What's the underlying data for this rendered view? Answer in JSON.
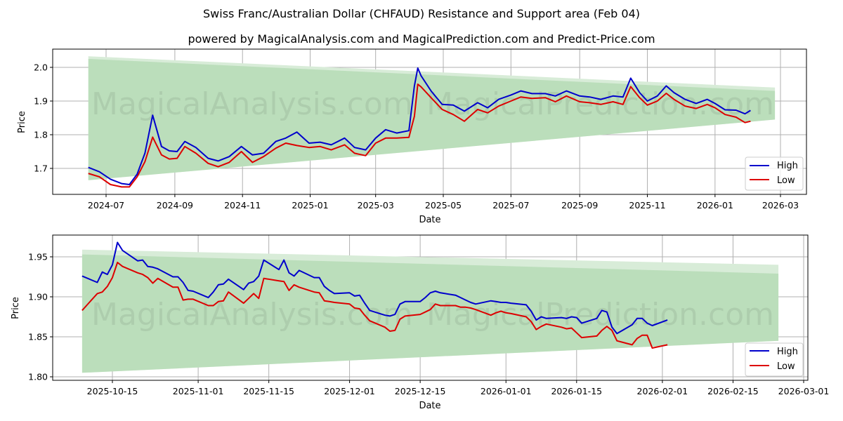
{
  "header": {
    "title": "Swiss Franc/Australian Dollar (CHFAUD) Resistance and Support area (Feb 04)",
    "subtitle": "powered by MagicalAnalysis.com and MagicalPrediction.com and Predict-Price.com"
  },
  "watermarks": [
    "MagicalAnalysis.com",
    "MagicalPrediction.com"
  ],
  "colors": {
    "high": "#0000cc",
    "low": "#dd0000",
    "band": "#a8d5a8",
    "band_light": "#d8ecd8",
    "grid": "#b0b0b0"
  },
  "chart_data": [
    {
      "type": "line",
      "title": "Full history",
      "xlabel": "Date",
      "ylabel": "Price",
      "x_ticks": [
        "2024-07",
        "2024-09",
        "2024-11",
        "2025-01",
        "2025-03",
        "2025-05",
        "2025-07",
        "2025-09",
        "2025-11",
        "2026-01",
        "2026-03"
      ],
      "y_ticks": [
        "1.7",
        "1.8",
        "1.9",
        "2.0"
      ],
      "ylim": [
        1.625,
        2.055
      ],
      "grid": true,
      "legend": {
        "position": "lower right",
        "entries": [
          "High",
          "Low"
        ]
      },
      "band": {
        "description": "Resistance/support area",
        "x_start": "2024-06-15",
        "x_end": "2026-02-24",
        "upper_start": 2.033,
        "upper_end": 1.94,
        "upper_inner_start": 2.025,
        "upper_inner_end": 1.93,
        "lower_start": 1.665,
        "lower_end": 1.845
      },
      "x": [
        "2024-06-15",
        "2024-06-25",
        "2024-07-05",
        "2024-07-15",
        "2024-07-22",
        "2024-07-29",
        "2024-08-05",
        "2024-08-12",
        "2024-08-20",
        "2024-08-27",
        "2024-09-03",
        "2024-09-10",
        "2024-09-20",
        "2024-10-01",
        "2024-10-10",
        "2024-10-20",
        "2024-10-31",
        "2024-11-10",
        "2024-11-20",
        "2024-12-01",
        "2024-12-10",
        "2024-12-20",
        "2024-12-31",
        "2025-01-10",
        "2025-01-20",
        "2025-02-01",
        "2025-02-10",
        "2025-02-20",
        "2025-03-01",
        "2025-03-10",
        "2025-03-20",
        "2025-03-31",
        "2025-04-05",
        "2025-04-08",
        "2025-04-11",
        "2025-04-20",
        "2025-04-30",
        "2025-05-10",
        "2025-05-20",
        "2025-06-01",
        "2025-06-10",
        "2025-06-20",
        "2025-07-01",
        "2025-07-10",
        "2025-07-20",
        "2025-08-01",
        "2025-08-10",
        "2025-08-20",
        "2025-09-01",
        "2025-09-10",
        "2025-09-20",
        "2025-10-01",
        "2025-10-10",
        "2025-10-17",
        "2025-10-25",
        "2025-11-01",
        "2025-11-10",
        "2025-11-18",
        "2025-11-25",
        "2025-12-05",
        "2025-12-15",
        "2025-12-25",
        "2026-01-01",
        "2026-01-10",
        "2026-01-20",
        "2026-01-28",
        "2026-02-02"
      ],
      "series": [
        {
          "name": "High",
          "values": [
            1.703,
            1.69,
            1.668,
            1.655,
            1.652,
            1.683,
            1.745,
            1.858,
            1.765,
            1.752,
            1.75,
            1.78,
            1.762,
            1.73,
            1.722,
            1.735,
            1.765,
            1.74,
            1.745,
            1.78,
            1.79,
            1.808,
            1.775,
            1.778,
            1.77,
            1.79,
            1.762,
            1.755,
            1.79,
            1.815,
            1.805,
            1.812,
            1.945,
            1.998,
            1.975,
            1.93,
            1.89,
            1.888,
            1.87,
            1.895,
            1.88,
            1.905,
            1.918,
            1.93,
            1.922,
            1.922,
            1.915,
            1.93,
            1.915,
            1.912,
            1.905,
            1.915,
            1.912,
            1.968,
            1.925,
            1.9,
            1.915,
            1.945,
            1.925,
            1.905,
            1.893,
            1.905,
            1.893,
            1.874,
            1.873,
            1.862,
            1.872
          ]
        },
        {
          "name": "Low",
          "values": [
            1.685,
            1.675,
            1.652,
            1.645,
            1.645,
            1.675,
            1.72,
            1.793,
            1.74,
            1.728,
            1.73,
            1.765,
            1.745,
            1.715,
            1.705,
            1.718,
            1.75,
            1.718,
            1.735,
            1.76,
            1.775,
            1.768,
            1.762,
            1.765,
            1.755,
            1.77,
            1.745,
            1.738,
            1.775,
            1.79,
            1.79,
            1.792,
            1.855,
            1.95,
            1.942,
            1.91,
            1.875,
            1.86,
            1.84,
            1.875,
            1.865,
            1.885,
            1.9,
            1.912,
            1.908,
            1.91,
            1.898,
            1.915,
            1.898,
            1.895,
            1.89,
            1.898,
            1.89,
            1.943,
            1.91,
            1.888,
            1.9,
            1.923,
            1.905,
            1.885,
            1.878,
            1.89,
            1.88,
            1.86,
            1.852,
            1.836,
            1.84
          ]
        }
      ]
    },
    {
      "type": "line",
      "title": "Recent detail",
      "xlabel": "Date",
      "ylabel": "Price",
      "x_ticks": [
        "2025-10-15",
        "2025-11-01",
        "2025-11-15",
        "2025-12-01",
        "2025-12-15",
        "2026-01-01",
        "2026-01-15",
        "2026-02-01",
        "2026-02-15",
        "2026-03-01"
      ],
      "y_ticks": [
        "1.80",
        "1.85",
        "1.90",
        "1.95"
      ],
      "ylim": [
        1.796,
        1.977
      ],
      "grid": true,
      "legend": {
        "position": "lower right",
        "entries": [
          "High",
          "Low"
        ]
      },
      "band": {
        "description": "Resistance/support area",
        "x_start": "2025-10-09",
        "x_end": "2026-02-24",
        "upper_start": 1.959,
        "upper_end": 1.94,
        "upper_inner_start": 1.953,
        "upper_inner_end": 1.929,
        "lower_start": 1.805,
        "lower_end": 1.845
      },
      "x": [
        "2025-10-09",
        "2025-10-12",
        "2025-10-13",
        "2025-10-14",
        "2025-10-15",
        "2025-10-16",
        "2025-10-17",
        "2025-10-20",
        "2025-10-21",
        "2025-10-22",
        "2025-10-23",
        "2025-10-24",
        "2025-10-27",
        "2025-10-28",
        "2025-10-29",
        "2025-10-30",
        "2025-10-31",
        "2025-11-03",
        "2025-11-04",
        "2025-11-05",
        "2025-11-06",
        "2025-11-07",
        "2025-11-10",
        "2025-11-11",
        "2025-11-12",
        "2025-11-13",
        "2025-11-14",
        "2025-11-17",
        "2025-11-18",
        "2025-11-19",
        "2025-11-20",
        "2025-11-21",
        "2025-11-24",
        "2025-11-25",
        "2025-11-26",
        "2025-11-27",
        "2025-11-28",
        "2025-12-01",
        "2025-12-02",
        "2025-12-03",
        "2025-12-04",
        "2025-12-05",
        "2025-12-08",
        "2025-12-09",
        "2025-12-10",
        "2025-12-11",
        "2025-12-12",
        "2025-12-15",
        "2025-12-16",
        "2025-12-17",
        "2025-12-18",
        "2025-12-19",
        "2025-12-22",
        "2025-12-23",
        "2025-12-24",
        "2025-12-25",
        "2025-12-26",
        "2025-12-29",
        "2025-12-30",
        "2025-12-31",
        "2026-01-01",
        "2026-01-02",
        "2026-01-05",
        "2026-01-06",
        "2026-01-07",
        "2026-01-08",
        "2026-01-09",
        "2026-01-12",
        "2026-01-13",
        "2026-01-14",
        "2026-01-15",
        "2026-01-16",
        "2026-01-19",
        "2026-01-20",
        "2026-01-21",
        "2026-01-22",
        "2026-01-23",
        "2026-01-26",
        "2026-01-27",
        "2026-01-28",
        "2026-01-29",
        "2026-01-30",
        "2026-02-02"
      ],
      "series": [
        {
          "name": "High",
          "values": [
            1.926,
            1.918,
            1.931,
            1.928,
            1.94,
            1.968,
            1.958,
            1.945,
            1.946,
            1.938,
            1.937,
            1.935,
            1.925,
            1.925,
            1.918,
            1.908,
            1.907,
            1.899,
            1.906,
            1.915,
            1.916,
            1.922,
            1.909,
            1.917,
            1.919,
            1.926,
            1.946,
            1.934,
            1.946,
            1.93,
            1.926,
            1.933,
            1.924,
            1.924,
            1.913,
            1.908,
            1.904,
            1.905,
            1.901,
            1.902,
            1.892,
            1.883,
            1.877,
            1.876,
            1.878,
            1.891,
            1.894,
            1.894,
            1.899,
            1.905,
            1.907,
            1.905,
            1.902,
            1.899,
            1.896,
            1.893,
            1.891,
            1.895,
            1.894,
            1.893,
            1.893,
            1.892,
            1.89,
            1.882,
            1.871,
            1.875,
            1.873,
            1.874,
            1.873,
            1.875,
            1.874,
            1.867,
            1.873,
            1.883,
            1.881,
            1.862,
            1.854,
            1.865,
            1.873,
            1.873,
            1.867,
            1.864,
            1.871
          ]
        },
        {
          "name": "Low",
          "values": [
            1.883,
            1.904,
            1.906,
            1.913,
            1.924,
            1.943,
            1.938,
            1.93,
            1.928,
            1.924,
            1.917,
            1.923,
            1.912,
            1.912,
            1.896,
            1.897,
            1.897,
            1.889,
            1.889,
            1.894,
            1.895,
            1.906,
            1.892,
            1.898,
            1.904,
            1.898,
            1.923,
            1.92,
            1.919,
            1.908,
            1.915,
            1.912,
            1.906,
            1.905,
            1.895,
            1.894,
            1.893,
            1.891,
            1.886,
            1.885,
            1.877,
            1.87,
            1.862,
            1.857,
            1.858,
            1.872,
            1.876,
            1.878,
            1.881,
            1.884,
            1.891,
            1.889,
            1.889,
            1.887,
            1.887,
            1.886,
            1.884,
            1.877,
            1.88,
            1.882,
            1.88,
            1.879,
            1.875,
            1.869,
            1.859,
            1.863,
            1.866,
            1.862,
            1.86,
            1.861,
            1.855,
            1.849,
            1.851,
            1.858,
            1.863,
            1.858,
            1.845,
            1.84,
            1.848,
            1.852,
            1.852,
            1.836,
            1.84
          ]
        }
      ]
    }
  ]
}
